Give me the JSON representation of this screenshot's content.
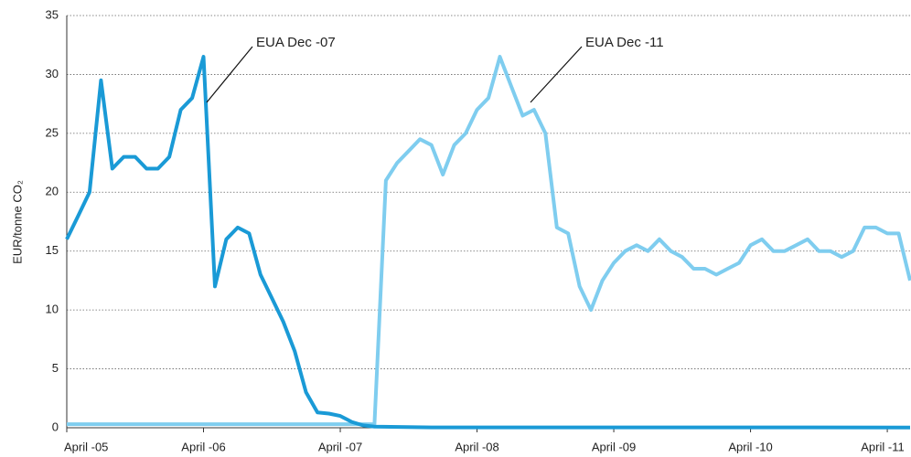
{
  "chart_data": {
    "type": "line",
    "y_label": "EUR/tonne CO₂",
    "xlim": [
      "2005-04",
      "2011-06"
    ],
    "xticks": [
      {
        "value": "2005-04",
        "label": "April -05"
      },
      {
        "value": "2006-04",
        "label": "April -06"
      },
      {
        "value": "2007-04",
        "label": "April -07"
      },
      {
        "value": "2008-04",
        "label": "April -08"
      },
      {
        "value": "2009-04",
        "label": "April -09"
      },
      {
        "value": "2010-04",
        "label": "April -10"
      },
      {
        "value": "2011-04",
        "label": "April -11"
      }
    ],
    "ylim": [
      0,
      35
    ],
    "yticks": [
      0,
      5,
      10,
      15,
      20,
      25,
      30,
      35
    ],
    "grid": true,
    "series": [
      {
        "name": "EUA Dec -07",
        "color": "#1a9ad6",
        "x": [
          "2005-04",
          "2005-05",
          "2005-06",
          "2005-07",
          "2005-08",
          "2005-09",
          "2005-10",
          "2005-11",
          "2005-12",
          "2006-01",
          "2006-02",
          "2006-03",
          "2006-04",
          "2006-05",
          "2006-06",
          "2006-07",
          "2006-08",
          "2006-09",
          "2006-10",
          "2006-11",
          "2006-12",
          "2007-01",
          "2007-02",
          "2007-03",
          "2007-04",
          "2007-05",
          "2007-06",
          "2007-07",
          "2007-12",
          "2011-06"
        ],
        "values": [
          16,
          18,
          20,
          29.5,
          22,
          23,
          23,
          22,
          22,
          23,
          27,
          28,
          31.5,
          12,
          16,
          17,
          16.5,
          13,
          11,
          9,
          6.5,
          3,
          1.3,
          1.2,
          1,
          0.5,
          0.2,
          0.1,
          0.03,
          0.02
        ]
      },
      {
        "name": "EUA Dec -11",
        "color": "#7fcdef",
        "x": [
          "2005-04",
          "2007-07",
          "2007-08",
          "2007-09",
          "2007-10",
          "2007-11",
          "2007-12",
          "2008-01",
          "2008-02",
          "2008-03",
          "2008-04",
          "2008-05",
          "2008-06",
          "2008-07",
          "2008-08",
          "2008-09",
          "2008-10",
          "2008-11",
          "2008-12",
          "2009-01",
          "2009-02",
          "2009-03",
          "2009-04",
          "2009-05",
          "2009-06",
          "2009-07",
          "2009-08",
          "2009-09",
          "2009-10",
          "2009-11",
          "2009-12",
          "2010-01",
          "2010-02",
          "2010-03",
          "2010-04",
          "2010-05",
          "2010-06",
          "2010-07",
          "2010-08",
          "2010-09",
          "2010-10",
          "2010-11",
          "2010-12",
          "2011-01",
          "2011-02",
          "2011-03",
          "2011-04",
          "2011-05",
          "2011-06"
        ],
        "values": [
          0.3,
          0.3,
          21,
          22.5,
          23.5,
          24.5,
          24,
          21.5,
          24,
          25,
          27,
          28,
          31.5,
          29,
          26.5,
          27,
          25,
          17,
          16.5,
          12,
          10,
          12.5,
          14,
          15,
          15.5,
          15,
          16,
          15,
          14.5,
          13.5,
          13.5,
          13,
          13.5,
          14,
          15.5,
          16,
          15,
          15,
          15.5,
          16,
          15,
          15,
          14.5,
          15,
          17,
          17,
          16.5,
          16.5,
          12.5
        ]
      }
    ]
  }
}
